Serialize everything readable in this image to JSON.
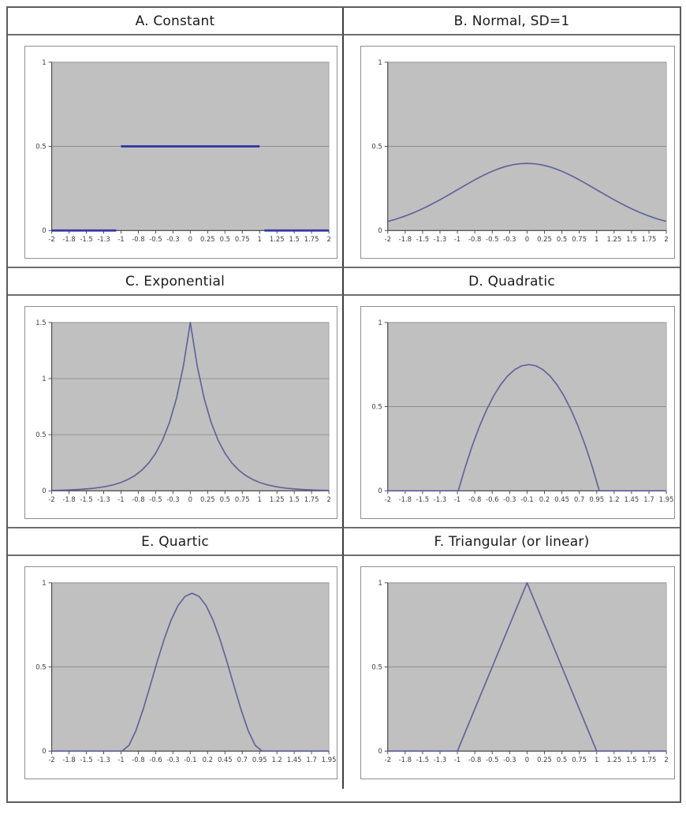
{
  "figure": {
    "background": "#ffffff",
    "outer_border_color": "#5c5c5c",
    "grid_line_color": "#878787",
    "axis_color": "#4d4d4d",
    "plot_bg": "#c0c0c0",
    "tick_label_color": "#3c3c3c",
    "title_color": "#1a1a1a"
  },
  "chart_data": [
    {
      "panel": "A",
      "title": "A. Constant",
      "type": "line",
      "xlim": [
        -2,
        2
      ],
      "ylim": [
        0,
        1
      ],
      "ytick_values": [
        0,
        0.5,
        1
      ],
      "ytick_labels": [
        "0",
        "0.5",
        "1"
      ],
      "xtick_labels": [
        "-2",
        "-1.8",
        "-1.5",
        "-1.3",
        "-1",
        "-0.8",
        "-0.5",
        "-0.3",
        "0",
        "0.25",
        "0.5",
        "0.75",
        "1",
        "1.25",
        "1.5",
        "1.75",
        "2"
      ],
      "line_color": "#3535a4",
      "line_width": 2.8,
      "segments": [
        [
          [
            -2,
            0
          ],
          [
            -1.07,
            0
          ]
        ],
        [
          [
            -1,
            0.5
          ],
          [
            1,
            0.5
          ]
        ],
        [
          [
            1.07,
            0
          ],
          [
            2,
            0
          ]
        ]
      ]
    },
    {
      "panel": "B",
      "title": "B. Normal, SD=1",
      "type": "line",
      "xlim": [
        -2,
        2
      ],
      "ylim": [
        0,
        1
      ],
      "ytick_values": [
        0,
        0.5,
        1
      ],
      "ytick_labels": [
        "0",
        "0.5",
        "1"
      ],
      "xtick_labels": [
        "-2",
        "-1.8",
        "-1.5",
        "-1.3",
        "-1",
        "-0.8",
        "-0.5",
        "-0.3",
        "0",
        "0.25",
        "0.5",
        "0.75",
        "1",
        "1.25",
        "1.5",
        "1.75",
        "2"
      ],
      "line_color": "#62629b",
      "line_width": 1.7,
      "points": [
        [
          -2,
          0.054
        ],
        [
          -1.9,
          0.0656
        ],
        [
          -1.8,
          0.079
        ],
        [
          -1.7,
          0.094
        ],
        [
          -1.6,
          0.1109
        ],
        [
          -1.5,
          0.1295
        ],
        [
          -1.4,
          0.1497
        ],
        [
          -1.3,
          0.1714
        ],
        [
          -1.2,
          0.1942
        ],
        [
          -1.1,
          0.2179
        ],
        [
          -1,
          0.242
        ],
        [
          -0.9,
          0.2661
        ],
        [
          -0.8,
          0.2897
        ],
        [
          -0.7,
          0.3123
        ],
        [
          -0.6,
          0.3332
        ],
        [
          -0.5,
          0.3521
        ],
        [
          -0.4,
          0.3683
        ],
        [
          -0.3,
          0.3814
        ],
        [
          -0.2,
          0.391
        ],
        [
          -0.1,
          0.397
        ],
        [
          0,
          0.3989
        ],
        [
          0.1,
          0.397
        ],
        [
          0.2,
          0.391
        ],
        [
          0.3,
          0.3814
        ],
        [
          0.4,
          0.3683
        ],
        [
          0.5,
          0.3521
        ],
        [
          0.6,
          0.3332
        ],
        [
          0.7,
          0.3123
        ],
        [
          0.8,
          0.2897
        ],
        [
          0.9,
          0.2661
        ],
        [
          1,
          0.242
        ],
        [
          1.1,
          0.2179
        ],
        [
          1.2,
          0.1942
        ],
        [
          1.3,
          0.1714
        ],
        [
          1.4,
          0.1497
        ],
        [
          1.5,
          0.1295
        ],
        [
          1.6,
          0.1109
        ],
        [
          1.7,
          0.094
        ],
        [
          1.8,
          0.079
        ],
        [
          1.9,
          0.0656
        ],
        [
          2,
          0.054
        ]
      ]
    },
    {
      "panel": "C",
      "title": "C. Exponential",
      "type": "line",
      "xlim": [
        -2,
        2
      ],
      "ylim": [
        0,
        1.5
      ],
      "ytick_values": [
        0,
        0.5,
        1,
        1.5
      ],
      "ytick_labels": [
        "0",
        "0.5",
        "1",
        "1.5"
      ],
      "xtick_labels": [
        "-2",
        "-1.8",
        "-1.5",
        "-1.3",
        "-1",
        "-0.8",
        "-0.5",
        "-0.3",
        "0",
        "0.25",
        "0.5",
        "0.75",
        "1",
        "1.25",
        "1.5",
        "1.75",
        "2"
      ],
      "line_color": "#62629b",
      "line_width": 1.7,
      "points": [
        [
          -2,
          0.0037
        ],
        [
          -1.9,
          0.005
        ],
        [
          -1.8,
          0.0068
        ],
        [
          -1.7,
          0.0091
        ],
        [
          -1.6,
          0.0123
        ],
        [
          -1.5,
          0.0167
        ],
        [
          -1.4,
          0.0225
        ],
        [
          -1.3,
          0.0304
        ],
        [
          -1.2,
          0.041
        ],
        [
          -1.1,
          0.0553
        ],
        [
          -1,
          0.0747
        ],
        [
          -0.9,
          0.1008
        ],
        [
          -0.8,
          0.1361
        ],
        [
          -0.7,
          0.1837
        ],
        [
          -0.6,
          0.2479
        ],
        [
          -0.5,
          0.3347
        ],
        [
          -0.4,
          0.4518
        ],
        [
          -0.3,
          0.6099
        ],
        [
          -0.2,
          0.8232
        ],
        [
          -0.1,
          1.1112
        ],
        [
          0,
          1.5
        ],
        [
          0.1,
          1.1112
        ],
        [
          0.2,
          0.8232
        ],
        [
          0.3,
          0.6099
        ],
        [
          0.4,
          0.4518
        ],
        [
          0.5,
          0.3347
        ],
        [
          0.6,
          0.2479
        ],
        [
          0.7,
          0.1837
        ],
        [
          0.8,
          0.1361
        ],
        [
          0.9,
          0.1008
        ],
        [
          1,
          0.0747
        ],
        [
          1.1,
          0.0553
        ],
        [
          1.2,
          0.041
        ],
        [
          1.3,
          0.0304
        ],
        [
          1.4,
          0.0225
        ],
        [
          1.5,
          0.0167
        ],
        [
          1.6,
          0.0123
        ],
        [
          1.7,
          0.0091
        ],
        [
          1.8,
          0.0068
        ],
        [
          1.9,
          0.005
        ],
        [
          2,
          0.0037
        ]
      ]
    },
    {
      "panel": "D",
      "title": "D. Quadratic",
      "type": "line",
      "xlim": [
        -2,
        1.95
      ],
      "ylim": [
        0,
        1
      ],
      "ytick_values": [
        0,
        0.5,
        1
      ],
      "ytick_labels": [
        "0",
        "0.5",
        "1"
      ],
      "xtick_labels": [
        "-2",
        "-1.8",
        "-1.5",
        "-1.3",
        "-1",
        "-0.8",
        "-0.6",
        "-0.3",
        "-0.1",
        "0.2",
        "0.45",
        "0.7",
        "0.95",
        "1.2",
        "1.45",
        "1.7",
        "1.95"
      ],
      "line_color": "#62629b",
      "line_width": 1.7,
      "points": [
        [
          -2,
          0
        ],
        [
          -1,
          0
        ],
        [
          -0.9,
          0.1425
        ],
        [
          -0.8,
          0.27
        ],
        [
          -0.7,
          0.3825
        ],
        [
          -0.6,
          0.48
        ],
        [
          -0.5,
          0.5625
        ],
        [
          -0.4,
          0.63
        ],
        [
          -0.3,
          0.6825
        ],
        [
          -0.2,
          0.72
        ],
        [
          -0.1,
          0.7425
        ],
        [
          0,
          0.75
        ],
        [
          0.1,
          0.7425
        ],
        [
          0.2,
          0.72
        ],
        [
          0.3,
          0.6825
        ],
        [
          0.4,
          0.63
        ],
        [
          0.5,
          0.5625
        ],
        [
          0.6,
          0.48
        ],
        [
          0.7,
          0.3825
        ],
        [
          0.8,
          0.27
        ],
        [
          0.9,
          0.1425
        ],
        [
          1,
          0
        ],
        [
          1.95,
          0
        ]
      ]
    },
    {
      "panel": "E",
      "title": "E. Quartic",
      "type": "line",
      "xlim": [
        -2,
        1.95
      ],
      "ylim": [
        0,
        1
      ],
      "ytick_values": [
        0,
        0.5,
        1
      ],
      "ytick_labels": [
        "0",
        "0.5",
        "1"
      ],
      "xtick_labels": [
        "-2",
        "-1.8",
        "-1.5",
        "-1.3",
        "-1",
        "-0.8",
        "-0.6",
        "-0.3",
        "-0.1",
        "0.2",
        "0.45",
        "0.7",
        "0.95",
        "1.2",
        "1.45",
        "1.7",
        "1.95"
      ],
      "line_color": "#62629b",
      "line_width": 1.7,
      "points": [
        [
          -2,
          0
        ],
        [
          -1,
          0
        ],
        [
          -0.9,
          0.0338
        ],
        [
          -0.8,
          0.1215
        ],
        [
          -0.7,
          0.2439
        ],
        [
          -0.6,
          0.384
        ],
        [
          -0.5,
          0.5273
        ],
        [
          -0.4,
          0.6615
        ],
        [
          -0.3,
          0.7769
        ],
        [
          -0.2,
          0.8644
        ],
        [
          -0.1,
          0.9189
        ],
        [
          0,
          0.9375
        ],
        [
          0.1,
          0.9189
        ],
        [
          0.2,
          0.8644
        ],
        [
          0.3,
          0.7769
        ],
        [
          0.4,
          0.6615
        ],
        [
          0.5,
          0.5273
        ],
        [
          0.6,
          0.384
        ],
        [
          0.7,
          0.2439
        ],
        [
          0.8,
          0.1215
        ],
        [
          0.9,
          0.0338
        ],
        [
          1,
          0
        ],
        [
          1.95,
          0
        ]
      ]
    },
    {
      "panel": "F",
      "title": "F. Triangular (or linear)",
      "type": "line",
      "xlim": [
        -2,
        2
      ],
      "ylim": [
        0,
        1
      ],
      "ytick_values": [
        0,
        0.5,
        1
      ],
      "ytick_labels": [
        "0",
        "0.5",
        "1"
      ],
      "xtick_labels": [
        "-2",
        "-1.8",
        "-1.5",
        "-1.3",
        "-1",
        "-0.8",
        "-0.5",
        "-0.3",
        "0",
        "0.25",
        "0.5",
        "0.75",
        "1",
        "1.25",
        "1.5",
        "1.75",
        "2"
      ],
      "line_color": "#62629b",
      "line_width": 1.7,
      "points": [
        [
          -2,
          0
        ],
        [
          -1,
          0
        ],
        [
          0,
          1
        ],
        [
          1,
          0
        ],
        [
          2,
          0
        ]
      ]
    }
  ]
}
